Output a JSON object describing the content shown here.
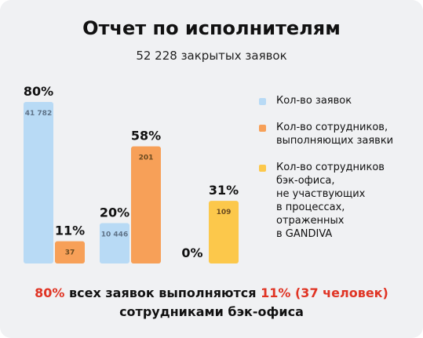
{
  "title": "Отчет по исполнителям",
  "subtitle": "52 228 закрытых заявок",
  "colors": {
    "requests": "#b8daf5",
    "employees": "#f7a058",
    "backoffice": "#fcc84b",
    "accent_red": "#e03424",
    "background": "#f0f1f3"
  },
  "chart_data": {
    "type": "bar",
    "ylim": [
      0,
      80
    ],
    "groups": [
      {
        "bars": [
          {
            "series": "Кол-во заявок",
            "percent": 80,
            "percent_label": "80%",
            "count_label": "41 782",
            "color_key": "requests"
          },
          {
            "series": "Кол-во сотрудников, выполняющих заявки",
            "percent": 11,
            "percent_label": "11%",
            "count_label": "37",
            "color_key": "employees"
          }
        ]
      },
      {
        "bars": [
          {
            "series": "Кол-во заявок",
            "percent": 20,
            "percent_label": "20%",
            "count_label": "10 446",
            "color_key": "requests"
          },
          {
            "series": "Кол-во сотрудников, выполняющих заявки",
            "percent": 58,
            "percent_label": "58%",
            "count_label": "201",
            "color_key": "employees"
          }
        ]
      },
      {
        "bars": [
          {
            "series": "Кол-во заявок",
            "percent": 0,
            "percent_label": "0%",
            "count_label": "",
            "color_key": "requests"
          },
          {
            "series": "Кол-во сотрудников бэк-офиса, не участвующих в процессах, отраженных в GANDIVA",
            "percent": 31,
            "percent_label": "31%",
            "count_label": "109",
            "color_key": "backoffice"
          }
        ]
      }
    ],
    "legend": [
      {
        "label": "Кол-во заявок",
        "color_key": "requests"
      },
      {
        "label": "Кол-во сотрудников,\nвыполняющих заявки",
        "color_key": "employees"
      },
      {
        "label": "Кол-во сотрудников\nбэк-офиса,\nне участвующих\nв процессах,\nотраженных\nв GANDIVA",
        "color_key": "backoffice"
      }
    ],
    "legend_placement": "right"
  },
  "footer": {
    "pct": "80%",
    "mid": " всех заявок выполняются ",
    "hl": "11% (37 человек)",
    "line2": "сотрудниками бэк-офиса"
  }
}
